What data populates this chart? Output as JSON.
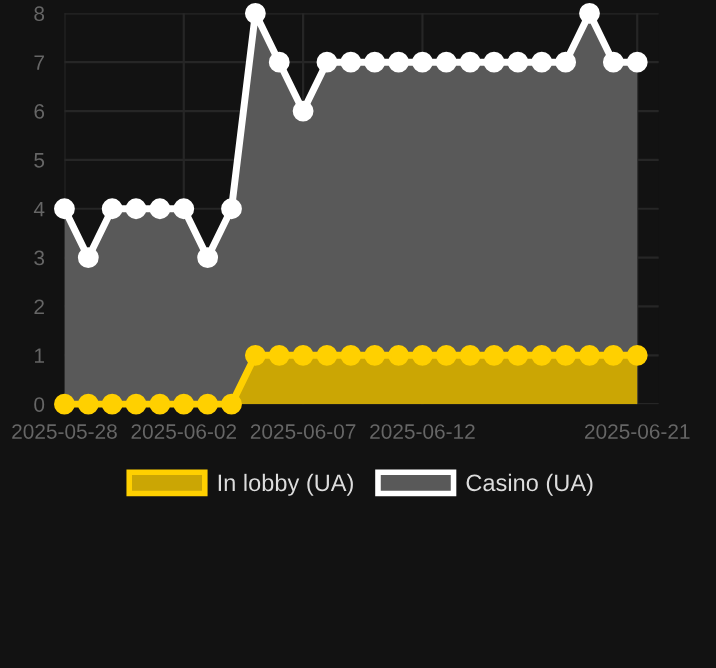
{
  "chart_data": {
    "type": "area",
    "x": [
      "2025-05-28",
      "2025-05-29",
      "2025-05-30",
      "2025-05-31",
      "2025-06-01",
      "2025-06-02",
      "2025-06-03",
      "2025-06-04",
      "2025-06-05",
      "2025-06-06",
      "2025-06-07",
      "2025-06-08",
      "2025-06-09",
      "2025-06-10",
      "2025-06-11",
      "2025-06-12",
      "2025-06-13",
      "2025-06-14",
      "2025-06-15",
      "2025-06-16",
      "2025-06-17",
      "2025-06-18",
      "2025-06-19",
      "2025-06-20",
      "2025-06-21"
    ],
    "series": [
      {
        "name": "Casino (UA)",
        "color": "#ffffff",
        "values": [
          4,
          3,
          4,
          4,
          4,
          4,
          3,
          4,
          8,
          7,
          6,
          7,
          7,
          7,
          7,
          7,
          7,
          7,
          7,
          7,
          7,
          7,
          8,
          7,
          7
        ]
      },
      {
        "name": "In lobby (UA)",
        "color": "#ffd000",
        "values": [
          0,
          0,
          0,
          0,
          0,
          0,
          0,
          0,
          1,
          1,
          1,
          1,
          1,
          1,
          1,
          1,
          1,
          1,
          1,
          1,
          1,
          1,
          1,
          1,
          1
        ]
      }
    ],
    "xlim": [
      "2025-05-28",
      "2025-06-21"
    ],
    "xticks": [
      "2025-05-28",
      "2025-06-02",
      "2025-06-07",
      "2025-06-12",
      "2025-06-21"
    ],
    "ylim": [
      0,
      8
    ],
    "yticks": [
      0,
      1,
      2,
      3,
      4,
      5,
      6,
      7,
      8
    ],
    "grid": true,
    "legend": "bottom",
    "marker": "circle",
    "line_style": "solid"
  }
}
